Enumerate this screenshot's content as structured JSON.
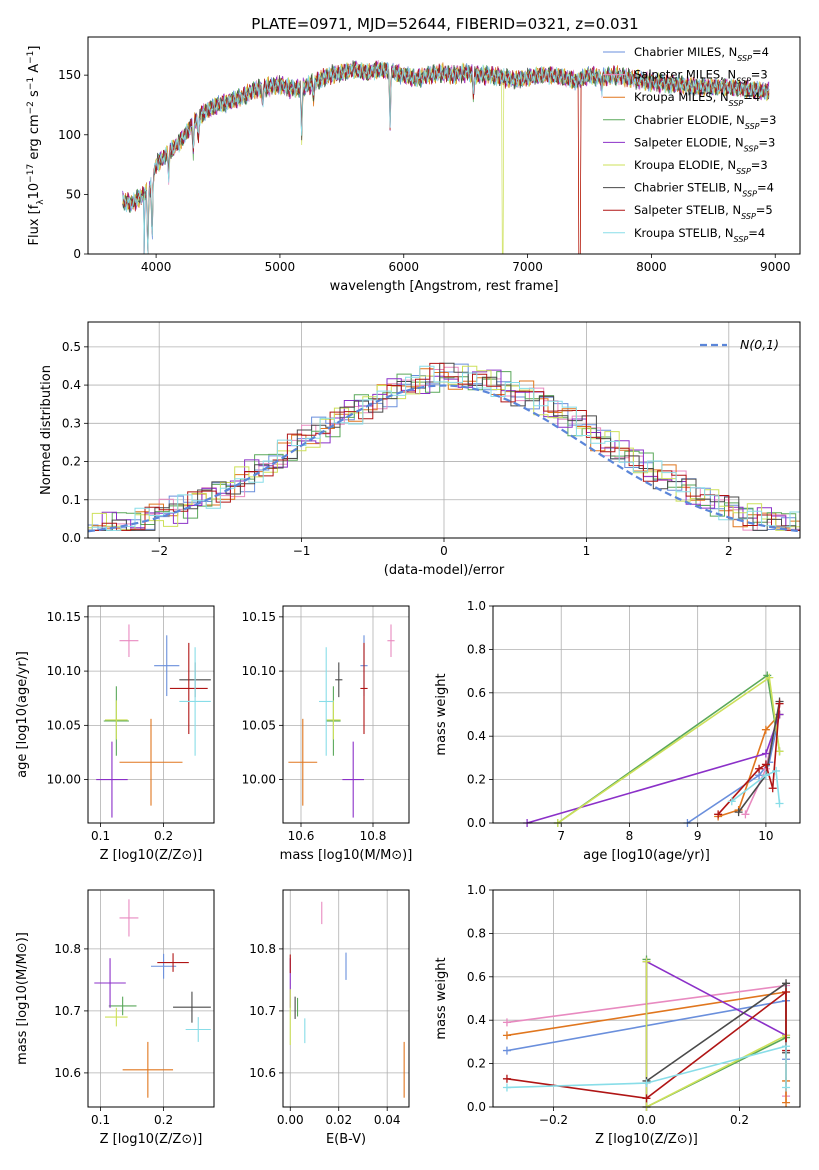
{
  "figure": {
    "title": "PLATE=0971, MJD=52644, FIBERID=0321, z=0.031"
  },
  "series_names": [
    "Chabrier MILES, N_SSP=4",
    "Salpeter MILES, N_SSP=3",
    "Kroupa MILES, N_SSP=4",
    "Chabrier ELODIE, N_SSP=3",
    "Salpeter ELODIE, N_SSP=3",
    "Kroupa ELODIE, N_SSP=3",
    "Chabrier STELIB, N_SSP=4",
    "Salpeter STELIB, N_SSP=5",
    "Kroupa STELIB, N_SSP=4"
  ],
  "colors": [
    "#6a8fdc",
    "#e88ac0",
    "#e0761e",
    "#5aa85a",
    "#8b30c8",
    "#cde05a",
    "#4a4a4a",
    "#b01515",
    "#88dde8"
  ],
  "chart_data": [
    {
      "id": "spectrum",
      "type": "line",
      "xlabel": "wavelength [Angstrom, rest frame]",
      "ylabel": "Flux [f_λ10^-17 erg cm^-2 s^-1 A^-1]",
      "xlim": [
        3450,
        9200
      ],
      "ylim": [
        0,
        182
      ],
      "xticks": [
        4000,
        5000,
        6000,
        7000,
        8000,
        9000
      ],
      "yticks": [
        0,
        50,
        100,
        150
      ],
      "legend": "top-right",
      "envelope": {
        "x": [
          3730,
          3800,
          3900,
          3950,
          4000,
          4100,
          4200,
          4300,
          4400,
          4500,
          4600,
          4700,
          4800,
          4900,
          5000,
          5100,
          5200,
          5300,
          5400,
          5500,
          5600,
          5700,
          5800,
          5900,
          6000,
          6100,
          6200,
          6300,
          6400,
          6500,
          6600,
          6700,
          6800,
          6900,
          7000,
          7100,
          7200,
          7300,
          7400,
          7500,
          7600,
          7700,
          7800,
          7900,
          8000,
          8200,
          8400,
          8600,
          8800,
          8950
        ],
        "y": [
          45,
          42,
          50,
          55,
          75,
          85,
          95,
          110,
          120,
          125,
          128,
          132,
          138,
          140,
          142,
          138,
          140,
          145,
          150,
          152,
          155,
          152,
          155,
          153,
          150,
          147,
          150,
          152,
          150,
          152,
          150,
          150,
          148,
          146,
          148,
          150,
          150,
          148,
          145,
          150,
          148,
          150,
          148,
          146,
          144,
          142,
          140,
          140,
          138,
          136
        ]
      },
      "dropouts": [
        {
          "series": "Kroupa ELODIE, N_SSP=3",
          "x": 6800
        },
        {
          "series": "Salpeter STELIB, N_SSP=5",
          "x": 7420
        },
        {
          "series": "Kroupa MILES, N_SSP=4",
          "x": 7420
        }
      ]
    },
    {
      "id": "residuals",
      "type": "line",
      "xlabel": "(data-model)/error",
      "ylabel": "Normed distribution",
      "xlim": [
        -2.5,
        2.5
      ],
      "ylim": [
        0,
        0.565
      ],
      "xticks": [
        -2,
        -1,
        0,
        1,
        2
      ],
      "yticks": [
        0.0,
        0.1,
        0.2,
        0.3,
        0.4,
        0.5
      ],
      "grid": true,
      "legend": "top-right",
      "reference_label": "N(0,1)",
      "bin_width": 0.1
    },
    {
      "id": "age_vs_Z",
      "type": "scatter",
      "xlabel": "Z [log10(Z/Z⊙)]",
      "ylabel": "age [log10(age/yr)]",
      "xlim": [
        0.08,
        0.28
      ],
      "ylim": [
        9.96,
        10.16
      ],
      "xticks": [
        0.1,
        0.2
      ],
      "yticks": [
        10.0,
        10.05,
        10.1,
        10.15
      ],
      "grid": true,
      "points": [
        {
          "x": 0.205,
          "y": 10.105,
          "xerr": 0.02,
          "yerr": 0.028
        },
        {
          "x": 0.145,
          "y": 10.128,
          "xerr": 0.015,
          "yerr": 0.015
        },
        {
          "x": 0.18,
          "y": 10.016,
          "xerr": 0.05,
          "yerr": 0.04
        },
        {
          "x": 0.125,
          "y": 10.054,
          "xerr": 0.02,
          "yerr": 0.032
        },
        {
          "x": 0.118,
          "y": 10.0,
          "xerr": 0.025,
          "yerr": 0.035
        },
        {
          "x": 0.125,
          "y": 10.055,
          "xerr": 0.018,
          "yerr": 0.018
        },
        {
          "x": 0.25,
          "y": 10.092,
          "xerr": 0.025,
          "yerr": 0.016
        },
        {
          "x": 0.24,
          "y": 10.084,
          "xerr": 0.03,
          "yerr": 0.042
        },
        {
          "x": 0.25,
          "y": 10.072,
          "xerr": 0.025,
          "yerr": 0.05
        }
      ]
    },
    {
      "id": "age_vs_mass",
      "type": "scatter",
      "xlabel": "mass [log10(M/M⊙)]",
      "ylabel": "",
      "xlim": [
        10.55,
        10.9
      ],
      "ylim": [
        9.96,
        10.16
      ],
      "xticks": [
        10.6,
        10.8
      ],
      "yticks": [
        10.0,
        10.05,
        10.1,
        10.15
      ],
      "grid": true,
      "points": [
        {
          "x": 10.775,
          "y": 10.105,
          "xerr": 0.01,
          "yerr": 0.028
        },
        {
          "x": 10.85,
          "y": 10.128,
          "xerr": 0.01,
          "yerr": 0.015
        },
        {
          "x": 10.605,
          "y": 10.016,
          "xerr": 0.04,
          "yerr": 0.04
        },
        {
          "x": 10.69,
          "y": 10.054,
          "xerr": 0.02,
          "yerr": 0.032
        },
        {
          "x": 10.745,
          "y": 10.0,
          "xerr": 0.03,
          "yerr": 0.035
        },
        {
          "x": 10.69,
          "y": 10.055,
          "xerr": 0.02,
          "yerr": 0.018
        },
        {
          "x": 10.705,
          "y": 10.092,
          "xerr": 0.01,
          "yerr": 0.016
        },
        {
          "x": 10.775,
          "y": 10.084,
          "xerr": 0.01,
          "yerr": 0.042
        },
        {
          "x": 10.67,
          "y": 10.072,
          "xerr": 0.02,
          "yerr": 0.05
        }
      ]
    },
    {
      "id": "mass_weight_vs_age",
      "type": "line",
      "xlabel": "age [log10(age/yr)]",
      "ylabel": "mass weight",
      "xlim": [
        6.0,
        10.5
      ],
      "ylim": [
        0.0,
        1.0
      ],
      "xticks": [
        7,
        8,
        9,
        10
      ],
      "yticks": [
        0.0,
        0.2,
        0.4,
        0.6,
        0.8,
        1.0
      ],
      "grid": true,
      "series": [
        {
          "name": "Chabrier MILES, N_SSP=4",
          "x": [
            8.85,
            9.9,
            10.05,
            10.2
          ],
          "y": [
            0.0,
            0.22,
            0.28,
            0.5
          ]
        },
        {
          "name": "Salpeter MILES, N_SSP=3",
          "x": [
            9.7,
            10.0,
            10.2
          ],
          "y": [
            0.04,
            0.25,
            0.55
          ]
        },
        {
          "name": "Kroupa MILES, N_SSP=4",
          "x": [
            9.3,
            9.6,
            10.0,
            10.2
          ],
          "y": [
            0.03,
            0.06,
            0.43,
            0.5
          ]
        },
        {
          "name": "Chabrier ELODIE, N_SSP=3",
          "x": [
            6.95,
            10.02,
            10.2
          ],
          "y": [
            0.0,
            0.68,
            0.33
          ]
        },
        {
          "name": "Salpeter ELODIE, N_SSP=3",
          "x": [
            6.5,
            10.0,
            10.2
          ],
          "y": [
            0.0,
            0.32,
            0.5
          ]
        },
        {
          "name": "Kroupa ELODIE, N_SSP=3",
          "x": [
            6.95,
            10.05,
            10.2
          ],
          "y": [
            0.0,
            0.67,
            0.33
          ]
        },
        {
          "name": "Chabrier STELIB, N_SSP=4",
          "x": [
            9.6,
            10.0,
            10.2
          ],
          "y": [
            0.05,
            0.22,
            0.56
          ]
        },
        {
          "name": "Salpeter STELIB, N_SSP=5",
          "x": [
            9.3,
            9.9,
            10.0,
            10.1,
            10.2
          ],
          "y": [
            0.04,
            0.25,
            0.27,
            0.16,
            0.55
          ]
        },
        {
          "name": "Kroupa STELIB, N_SSP=4",
          "x": [
            9.5,
            10.0,
            10.15,
            10.2
          ],
          "y": [
            0.1,
            0.22,
            0.24,
            0.09
          ]
        }
      ]
    },
    {
      "id": "mass_vs_Z",
      "type": "scatter",
      "xlabel": "Z [log10(Z/Z⊙)]",
      "ylabel": "mass [log10(M/M⊙)]",
      "xlim": [
        0.08,
        0.28
      ],
      "ylim": [
        10.545,
        10.895
      ],
      "xticks": [
        0.1,
        0.2
      ],
      "yticks": [
        10.6,
        10.7,
        10.8
      ],
      "grid": true,
      "points": [
        {
          "x": 0.2,
          "y": 10.772,
          "xerr": 0.02,
          "yerr": 0.02
        },
        {
          "x": 0.145,
          "y": 10.85,
          "xerr": 0.015,
          "yerr": 0.03
        },
        {
          "x": 0.175,
          "y": 10.605,
          "xerr": 0.04,
          "yerr": 0.045
        },
        {
          "x": 0.135,
          "y": 10.708,
          "xerr": 0.022,
          "yerr": 0.015
        },
        {
          "x": 0.115,
          "y": 10.745,
          "xerr": 0.025,
          "yerr": 0.04
        },
        {
          "x": 0.125,
          "y": 10.69,
          "xerr": 0.018,
          "yerr": 0.015
        },
        {
          "x": 0.245,
          "y": 10.706,
          "xerr": 0.03,
          "yerr": 0.025
        },
        {
          "x": 0.215,
          "y": 10.778,
          "xerr": 0.025,
          "yerr": 0.015
        },
        {
          "x": 0.255,
          "y": 10.67,
          "xerr": 0.02,
          "yerr": 0.02
        }
      ]
    },
    {
      "id": "mass_vs_EBV",
      "type": "scatter",
      "xlabel": "E(B-V)",
      "ylabel": "",
      "xlim": [
        -0.003,
        0.049
      ],
      "ylim": [
        10.545,
        10.895
      ],
      "xticks": [
        0.0,
        0.02,
        0.04
      ],
      "yticks": [
        10.6,
        10.7,
        10.8
      ],
      "grid": true,
      "points": [
        {
          "x": 0.023,
          "y": 10.772,
          "xerr": 0.0,
          "yerr": 0.022
        },
        {
          "x": 0.013,
          "y": 10.858,
          "xerr": 0.0,
          "yerr": 0.018
        },
        {
          "x": 0.047,
          "y": 10.605,
          "xerr": 0.0,
          "yerr": 0.045
        },
        {
          "x": 0.003,
          "y": 10.706,
          "xerr": 0.0,
          "yerr": 0.015
        },
        {
          "x": 0.0,
          "y": 10.745,
          "xerr": 0.0,
          "yerr": 0.04
        },
        {
          "x": 0.0,
          "y": 10.69,
          "xerr": 0.0,
          "yerr": 0.045
        },
        {
          "x": 0.002,
          "y": 10.705,
          "xerr": 0.0,
          "yerr": 0.018
        },
        {
          "x": 0.0,
          "y": 10.776,
          "xerr": 0.0,
          "yerr": 0.015
        },
        {
          "x": 0.006,
          "y": 10.668,
          "xerr": 0.0,
          "yerr": 0.02
        }
      ]
    },
    {
      "id": "mass_weight_vs_Z",
      "type": "line",
      "xlabel": "Z [log10(Z/Z⊙)]",
      "ylabel": "mass weight",
      "xlim": [
        -0.33,
        0.33
      ],
      "ylim": [
        0.0,
        1.0
      ],
      "xticks": [
        -0.2,
        0.0,
        0.2
      ],
      "yticks": [
        0.0,
        0.2,
        0.4,
        0.6,
        0.8,
        1.0
      ],
      "grid": true,
      "series": [
        {
          "name": "Chabrier MILES, N_SSP=4",
          "x": [
            -0.3,
            0.3,
            0.3
          ],
          "y": [
            0.26,
            0.49,
            0.22
          ]
        },
        {
          "name": "Salpeter MILES, N_SSP=3",
          "x": [
            -0.3,
            0.3,
            0.3
          ],
          "y": [
            0.39,
            0.56,
            0.05
          ]
        },
        {
          "name": "Kroupa MILES, N_SSP=4",
          "x": [
            -0.3,
            0.3,
            0.3,
            0.3
          ],
          "y": [
            0.33,
            0.53,
            0.12,
            0.02
          ]
        },
        {
          "name": "Chabrier ELODIE, N_SSP=3",
          "x": [
            0.0,
            0.0,
            0.3
          ],
          "y": [
            0.68,
            0.0,
            0.32
          ]
        },
        {
          "name": "Salpeter ELODIE, N_SSP=3",
          "x": [
            0.0,
            0.0,
            0.3
          ],
          "y": [
            0.0,
            0.67,
            0.33
          ]
        },
        {
          "name": "Kroupa ELODIE, N_SSP=3",
          "x": [
            0.0,
            0.0,
            0.3
          ],
          "y": [
            0.67,
            0.0,
            0.33
          ]
        },
        {
          "name": "Chabrier STELIB, N_SSP=4",
          "x": [
            0.0,
            0.3,
            0.3
          ],
          "y": [
            0.12,
            0.57,
            0.25
          ]
        },
        {
          "name": "Salpeter STELIB, N_SSP=5",
          "x": [
            -0.3,
            0.0,
            0.3,
            0.3
          ],
          "y": [
            0.13,
            0.04,
            0.53,
            0.26
          ]
        },
        {
          "name": "Kroupa STELIB, N_SSP=4",
          "x": [
            -0.3,
            0.0,
            0.3,
            0.3
          ],
          "y": [
            0.09,
            0.11,
            0.28,
            0.09
          ]
        }
      ]
    }
  ]
}
